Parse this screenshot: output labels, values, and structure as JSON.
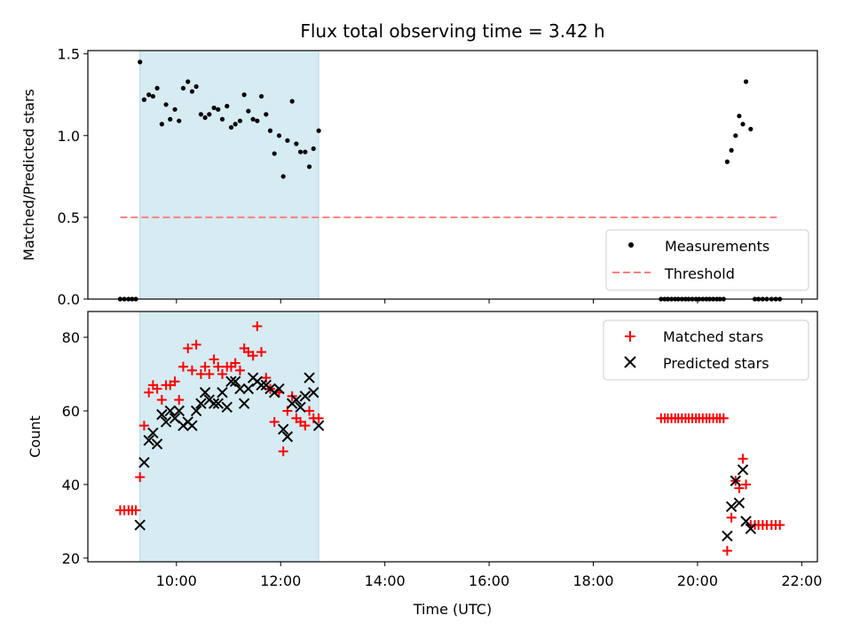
{
  "figure": {
    "title": "Flux total observing time = 3.42 h"
  },
  "chart_data": [
    {
      "type": "scatter",
      "ylabel": "Matched/Predicted stars",
      "xlim_hours": [
        8.3,
        22.3
      ],
      "ylim": [
        0,
        1.52
      ],
      "yticks": [
        0.0,
        0.5,
        1.0,
        1.5
      ],
      "ytick_labels": [
        "0.0",
        "0.5",
        "1.0",
        "1.5"
      ],
      "shaded_span_hours": [
        9.3,
        12.73
      ],
      "shaded_color": "#add8e6",
      "series": [
        {
          "name": "Measurements",
          "kind": "dot",
          "color": "#000000",
          "x": [
            8.92,
            9.0,
            9.08,
            9.15,
            9.22,
            9.3,
            9.38,
            9.47,
            9.55,
            9.63,
            9.72,
            9.8,
            9.88,
            9.97,
            10.05,
            10.13,
            10.22,
            10.3,
            10.38,
            10.47,
            10.55,
            10.63,
            10.72,
            10.8,
            10.88,
            10.97,
            11.05,
            11.13,
            11.22,
            11.3,
            11.38,
            11.47,
            11.55,
            11.63,
            11.72,
            11.8,
            11.88,
            11.97,
            12.05,
            12.13,
            12.22,
            12.3,
            12.38,
            12.47,
            12.55,
            12.63,
            12.73,
            19.3,
            19.37,
            19.43,
            19.5,
            19.57,
            19.63,
            19.7,
            19.77,
            19.83,
            19.9,
            19.97,
            20.03,
            20.1,
            20.17,
            20.23,
            20.3,
            20.37,
            20.43,
            20.5,
            20.57,
            20.65,
            20.73,
            20.8,
            20.87,
            20.93,
            21.02,
            21.1,
            21.17,
            21.25,
            21.33,
            21.42,
            21.5,
            21.58
          ],
          "y": [
            0,
            0,
            0,
            0,
            0,
            1.45,
            1.22,
            1.25,
            1.24,
            1.29,
            1.07,
            1.19,
            1.1,
            1.16,
            1.09,
            1.29,
            1.33,
            1.27,
            1.3,
            1.13,
            1.11,
            1.13,
            1.17,
            1.16,
            1.1,
            1.18,
            1.05,
            1.07,
            1.09,
            1.25,
            1.15,
            1.1,
            1.09,
            1.24,
            1.13,
            1.03,
            0.89,
            1.0,
            0.75,
            0.97,
            1.21,
            0.95,
            0.9,
            0.9,
            0.81,
            0.92,
            1.03,
            0,
            0,
            0,
            0,
            0,
            0,
            0,
            0,
            0,
            0,
            0,
            0,
            0,
            0,
            0,
            0,
            0,
            0,
            0,
            0.84,
            0.91,
            1.0,
            1.12,
            1.07,
            1.33,
            1.04,
            0,
            0,
            0,
            0,
            0,
            0,
            0
          ]
        },
        {
          "name": "Threshold",
          "kind": "dashed-line",
          "color": "#ff7f7f",
          "x": [
            8.92,
            21.58
          ],
          "y": [
            0.5,
            0.5
          ]
        }
      ],
      "legend": [
        "Measurements",
        "Threshold"
      ],
      "legend_position": "lower-right"
    },
    {
      "type": "scatter",
      "xlabel": "Time (UTC)",
      "ylabel": "Count",
      "xlim_hours": [
        8.3,
        22.3
      ],
      "xticks_hours": [
        10,
        12,
        14,
        16,
        18,
        20,
        22
      ],
      "xtick_labels": [
        "10:00",
        "12:00",
        "14:00",
        "16:00",
        "18:00",
        "20:00",
        "22:00"
      ],
      "ylim": [
        19,
        87
      ],
      "yticks": [
        20,
        40,
        60,
        80
      ],
      "ytick_labels": [
        "20",
        "40",
        "60",
        "80"
      ],
      "shaded_span_hours": [
        9.3,
        12.73
      ],
      "shaded_color": "#add8e6",
      "series": [
        {
          "name": "Matched stars",
          "kind": "plus",
          "color": "#ff0000",
          "x": [
            8.92,
            9.0,
            9.08,
            9.15,
            9.22,
            9.3,
            9.38,
            9.47,
            9.55,
            9.63,
            9.72,
            9.8,
            9.88,
            9.97,
            10.05,
            10.13,
            10.22,
            10.3,
            10.38,
            10.47,
            10.55,
            10.63,
            10.72,
            10.8,
            10.88,
            10.97,
            11.05,
            11.13,
            11.22,
            11.3,
            11.38,
            11.47,
            11.55,
            11.63,
            11.72,
            11.8,
            11.88,
            11.97,
            12.05,
            12.13,
            12.22,
            12.3,
            12.38,
            12.47,
            12.55,
            12.63,
            12.73,
            19.3,
            19.37,
            19.43,
            19.5,
            19.57,
            19.63,
            19.7,
            19.77,
            19.83,
            19.9,
            19.97,
            20.03,
            20.1,
            20.17,
            20.23,
            20.3,
            20.37,
            20.43,
            20.5,
            20.57,
            20.65,
            20.73,
            20.8,
            20.87,
            20.93,
            21.02,
            21.1,
            21.17,
            21.25,
            21.33,
            21.42,
            21.5,
            21.58
          ],
          "y": [
            33,
            33,
            33,
            33,
            33,
            42,
            56,
            65,
            67,
            66,
            63,
            67,
            67,
            68,
            63,
            72,
            77,
            71,
            78,
            70,
            72,
            70,
            74,
            72,
            70,
            72,
            72,
            73,
            71,
            77,
            76,
            75,
            83,
            76,
            69,
            66,
            57,
            65,
            49,
            60,
            64,
            58,
            57,
            56,
            60,
            58,
            58,
            58,
            58,
            58,
            58,
            58,
            58,
            58,
            58,
            58,
            58,
            58,
            58,
            58,
            58,
            58,
            58,
            58,
            58,
            58,
            22,
            31,
            41,
            39,
            47,
            40,
            29,
            29,
            29,
            29,
            29,
            29,
            29,
            29
          ]
        },
        {
          "name": "Predicted stars",
          "kind": "cross",
          "color": "#000000",
          "x": [
            9.3,
            9.38,
            9.47,
            9.55,
            9.63,
            9.72,
            9.8,
            9.88,
            9.97,
            10.05,
            10.13,
            10.22,
            10.3,
            10.38,
            10.47,
            10.55,
            10.63,
            10.72,
            10.8,
            10.88,
            10.97,
            11.05,
            11.13,
            11.22,
            11.3,
            11.38,
            11.47,
            11.55,
            11.63,
            11.72,
            11.8,
            11.88,
            11.97,
            12.05,
            12.13,
            12.22,
            12.3,
            12.38,
            12.47,
            12.55,
            12.63,
            12.73,
            20.57,
            20.65,
            20.73,
            20.8,
            20.87,
            20.93,
            21.02
          ],
          "y": [
            29,
            46,
            52,
            54,
            51,
            59,
            57,
            60,
            58,
            60,
            56,
            57,
            56,
            60,
            62,
            65,
            63,
            62,
            62,
            65,
            61,
            68,
            68,
            66,
            62,
            66,
            69,
            68,
            67,
            67,
            66,
            65,
            66,
            55,
            53,
            62,
            63,
            61,
            64,
            69,
            65,
            56,
            26,
            34,
            41,
            35,
            44,
            30,
            28
          ]
        }
      ],
      "legend": [
        "Matched stars",
        "Predicted stars"
      ],
      "legend_position": "upper-right"
    }
  ]
}
